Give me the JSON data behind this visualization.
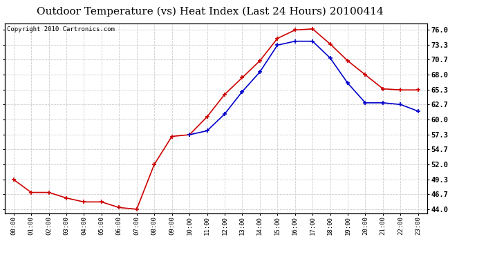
{
  "title": "Outdoor Temperature (vs) Heat Index (Last 24 Hours) 20100414",
  "copyright": "Copyright 2010 Cartronics.com",
  "x_labels": [
    "00:00",
    "01:00",
    "02:00",
    "03:00",
    "04:00",
    "05:00",
    "06:00",
    "07:00",
    "08:00",
    "09:00",
    "10:00",
    "11:00",
    "12:00",
    "13:00",
    "14:00",
    "15:00",
    "16:00",
    "17:00",
    "18:00",
    "19:00",
    "20:00",
    "21:00",
    "22:00",
    "23:00"
  ],
  "red_data": [
    49.3,
    47.0,
    47.0,
    46.0,
    45.3,
    45.3,
    44.3,
    44.0,
    52.0,
    57.0,
    57.3,
    60.5,
    64.5,
    67.5,
    70.5,
    74.5,
    76.0,
    76.2,
    73.5,
    70.5,
    68.0,
    65.5,
    65.3,
    65.3
  ],
  "blue_data": [
    null,
    null,
    null,
    null,
    null,
    null,
    null,
    null,
    null,
    null,
    57.3,
    58.0,
    61.0,
    65.0,
    68.5,
    73.3,
    74.0,
    74.0,
    71.0,
    66.5,
    63.0,
    63.0,
    62.7,
    61.5
  ],
  "y_ticks": [
    44.0,
    46.7,
    49.3,
    52.0,
    54.7,
    57.3,
    60.0,
    62.7,
    65.3,
    68.0,
    70.7,
    73.3,
    76.0
  ],
  "ylim": [
    43.2,
    77.2
  ],
  "bg_color": "#ffffff",
  "plot_bg_color": "#ffffff",
  "grid_color": "#cccccc",
  "red_color": "#cc0000",
  "blue_color": "#0000cc",
  "title_fontsize": 11,
  "copyright_fontsize": 6.5
}
